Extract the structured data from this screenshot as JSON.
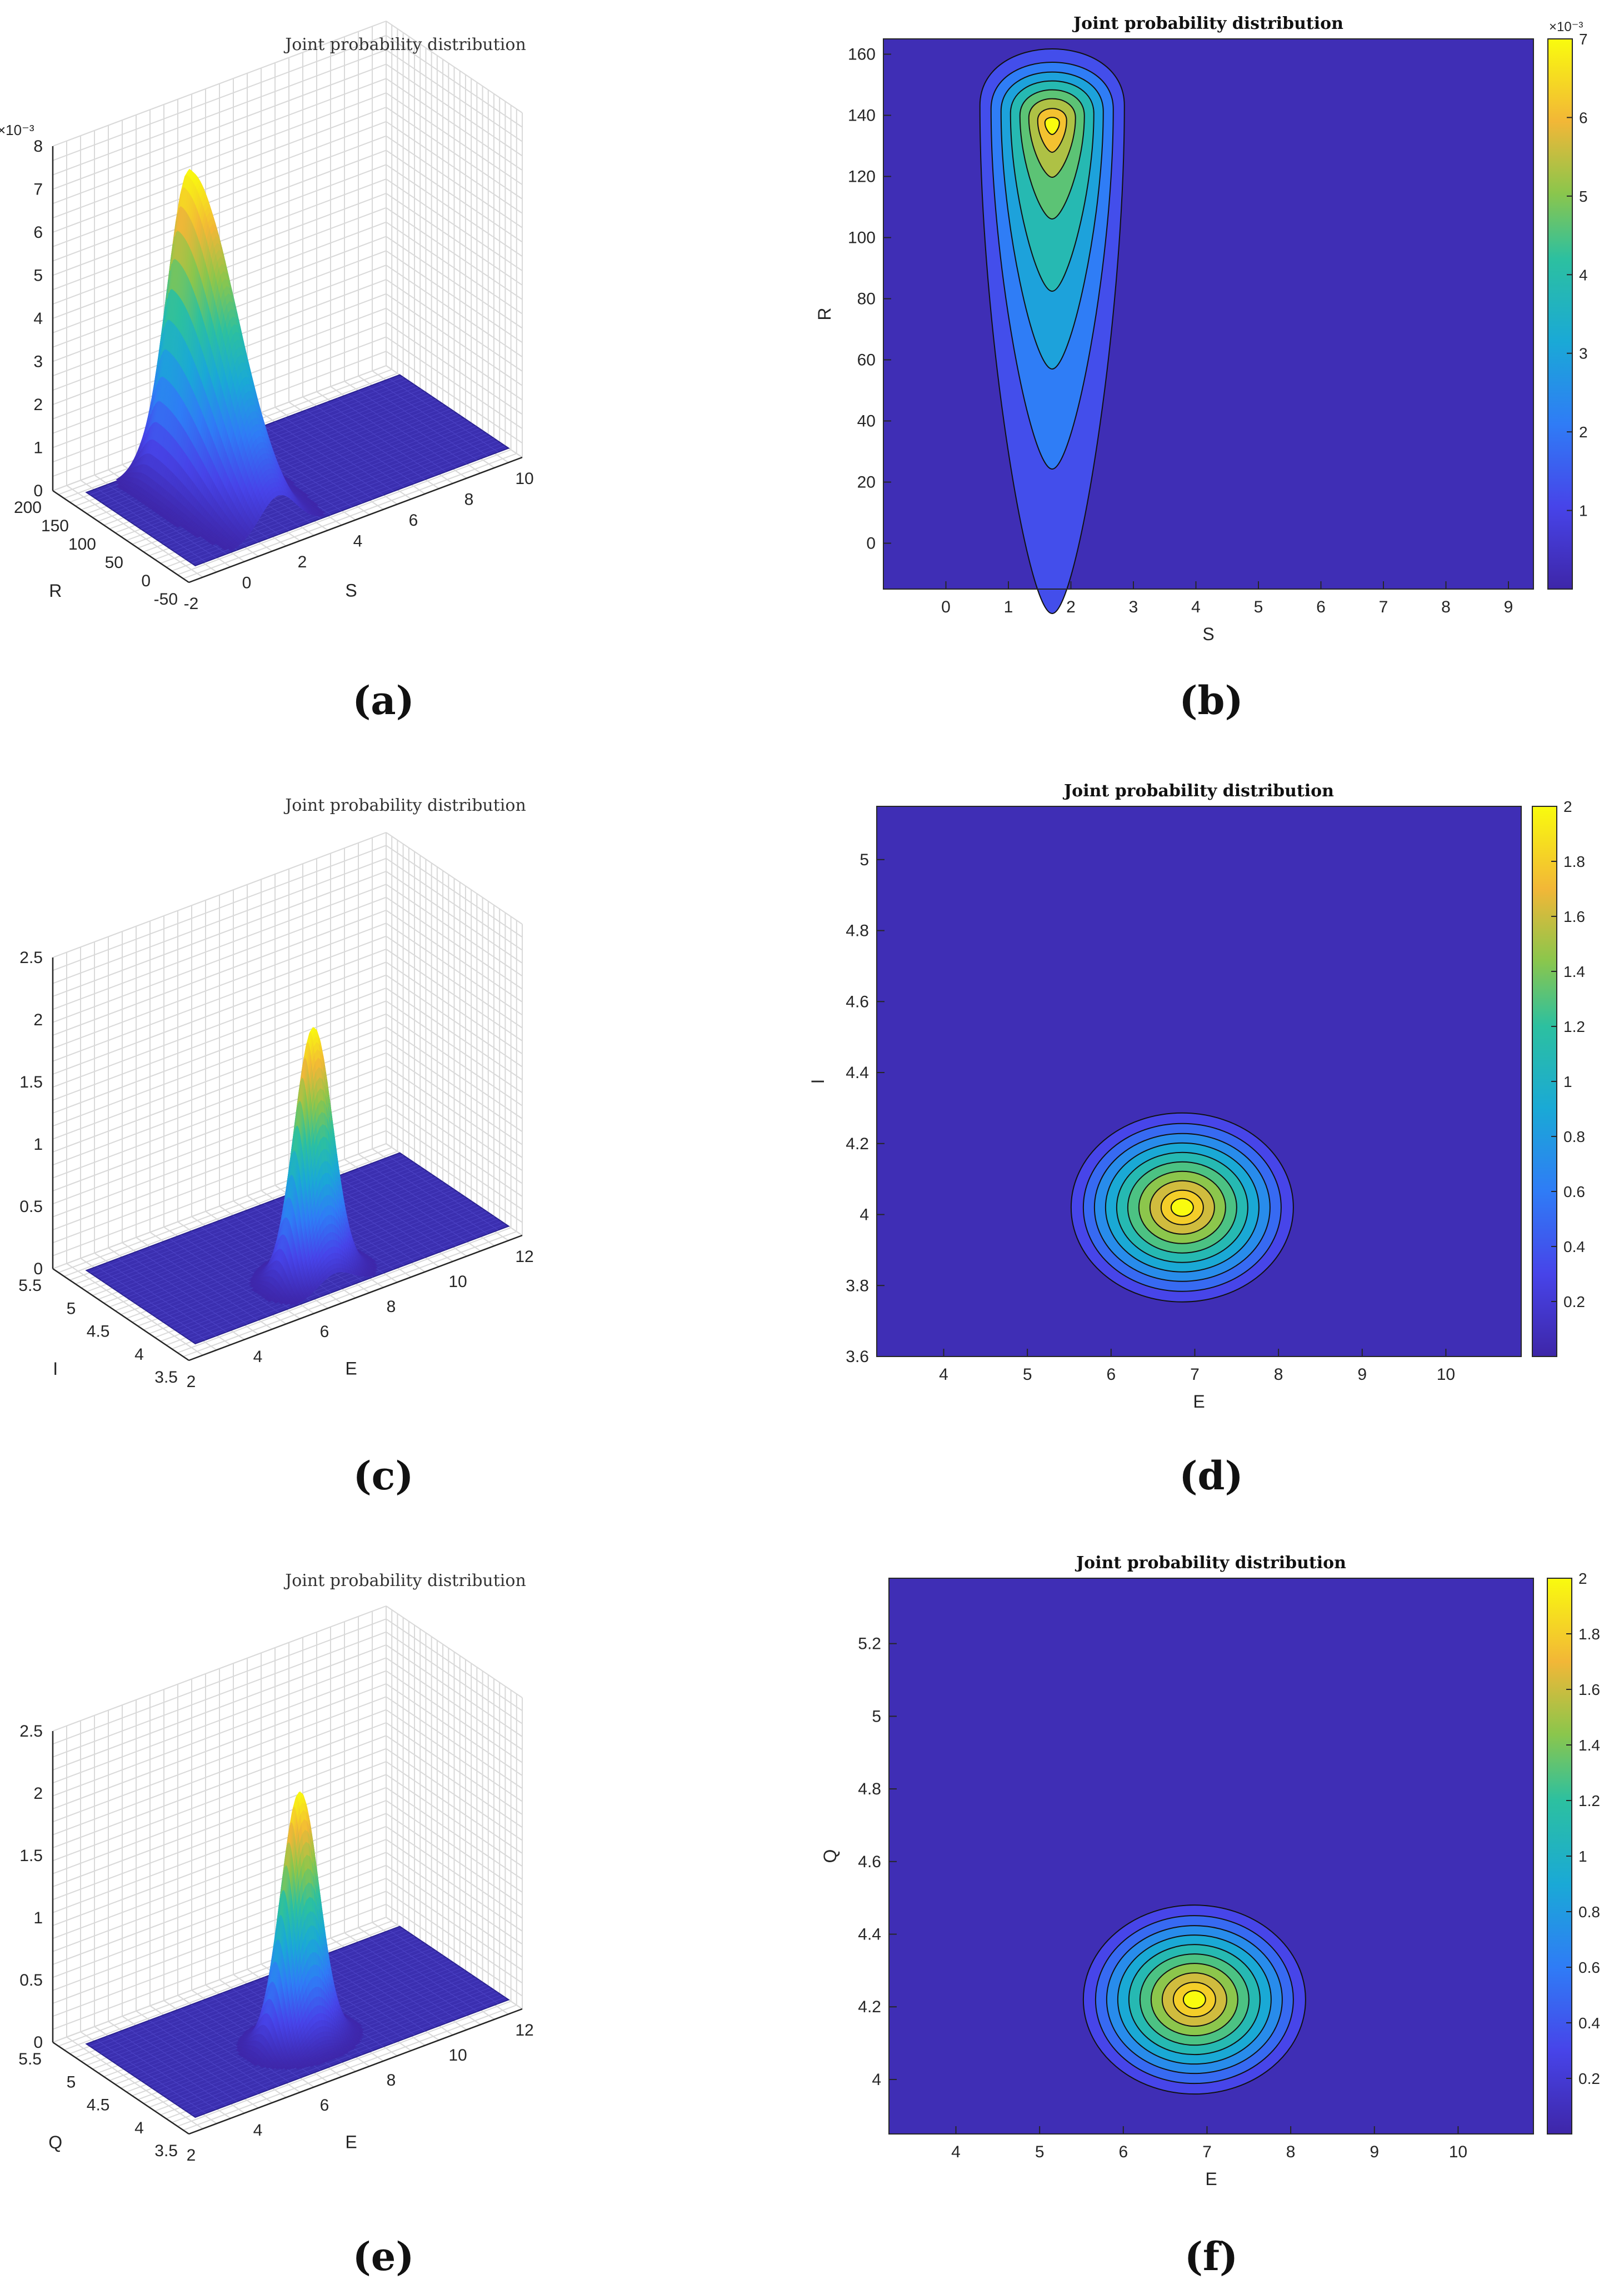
{
  "figure": {
    "captions": [
      "(a)",
      "(b)",
      "(c)",
      "(d)",
      "(e)",
      "(f)"
    ],
    "colors": {
      "surface": "#3b2fb0",
      "background_fill": "#3f2eb5",
      "grid": "#d9d9d9",
      "axis": "#262626"
    }
  },
  "chart_data": [
    {
      "id": "a",
      "type": "surface3d",
      "title": "Joint probability distribution",
      "xlabel": "S",
      "ylabel": "R",
      "zlabel": "",
      "z_exponent": "×10⁻³",
      "xlim": [
        -2,
        10
      ],
      "ylim": [
        -50,
        200
      ],
      "zlim": [
        0,
        8
      ],
      "xticks": [
        "-2",
        "0",
        "2",
        "4",
        "6",
        "8",
        "10"
      ],
      "yticks": [
        "-50",
        "0",
        "50",
        "100",
        "150",
        "200"
      ],
      "zticks": [
        "0",
        "1",
        "2",
        "3",
        "4",
        "5",
        "6",
        "7",
        "8"
      ],
      "peak": {
        "x": 1.7,
        "y": 137,
        "z": 7.1
      }
    },
    {
      "id": "b",
      "type": "contour",
      "title": "Joint probability distribution",
      "xlabel": "S",
      "ylabel": "R",
      "xlim": [
        -1,
        9.4
      ],
      "ylim": [
        -15,
        165
      ],
      "xticks": [
        "0",
        "1",
        "2",
        "3",
        "4",
        "5",
        "6",
        "7",
        "8",
        "9"
      ],
      "yticks": [
        "0",
        "20",
        "40",
        "60",
        "80",
        "100",
        "120",
        "140",
        "160"
      ],
      "colorbar": {
        "ticks": [
          "1",
          "2",
          "3",
          "4",
          "5",
          "6",
          "7"
        ],
        "exponent": "×10⁻³",
        "min": 0,
        "max": 7
      },
      "peak": {
        "x": 1.7,
        "y": 137
      }
    },
    {
      "id": "c",
      "type": "surface3d",
      "title": "Joint probability distribution",
      "xlabel": "E",
      "ylabel": "I",
      "zlabel": "",
      "xlim": [
        2,
        12
      ],
      "ylim": [
        3.5,
        5.5
      ],
      "zlim": [
        0,
        2.5
      ],
      "xticks": [
        "2",
        "4",
        "6",
        "8",
        "10",
        "12"
      ],
      "yticks": [
        "3.5",
        "4",
        "4.5",
        "5",
        "5.5"
      ],
      "zticks": [
        "0",
        "0.5",
        "1",
        "1.5",
        "2",
        "2.5"
      ],
      "peak": {
        "x": 6.8,
        "y": 4.02,
        "z": 2.0
      }
    },
    {
      "id": "d",
      "type": "contour",
      "title": "Joint probability distribution",
      "xlabel": "E",
      "ylabel": "I",
      "xlim": [
        3.2,
        10.9
      ],
      "ylim": [
        3.6,
        5.15
      ],
      "xticks": [
        "4",
        "5",
        "6",
        "7",
        "8",
        "9",
        "10"
      ],
      "yticks": [
        "3.6",
        "3.8",
        "4",
        "4.2",
        "4.4",
        "4.6",
        "4.8",
        "5"
      ],
      "colorbar": {
        "ticks": [
          "0.2",
          "0.4",
          "0.6",
          "0.8",
          "1",
          "1.2",
          "1.4",
          "1.6",
          "1.8",
          "2"
        ],
        "exponent": "",
        "min": 0,
        "max": 2
      },
      "peak": {
        "x": 6.85,
        "y": 4.02
      }
    },
    {
      "id": "e",
      "type": "surface3d",
      "title": "Joint probability distribution",
      "xlabel": "E",
      "ylabel": "Q",
      "zlabel": "",
      "xlim": [
        2,
        12
      ],
      "ylim": [
        3.5,
        5.5
      ],
      "zlim": [
        0,
        2.5
      ],
      "xticks": [
        "2",
        "4",
        "6",
        "8",
        "10",
        "12"
      ],
      "yticks": [
        "3.5",
        "4",
        "4.5",
        "5",
        "5.5"
      ],
      "zticks": [
        "0",
        "0.5",
        "1",
        "1.5",
        "2",
        "2.5"
      ],
      "peak": {
        "x": 6.8,
        "y": 4.22,
        "z": 2.0
      }
    },
    {
      "id": "f",
      "type": "contour",
      "title": "Joint probability distribution",
      "xlabel": "E",
      "ylabel": "Q",
      "xlim": [
        3.2,
        10.9
      ],
      "ylim": [
        3.85,
        5.38
      ],
      "xticks": [
        "4",
        "5",
        "6",
        "7",
        "8",
        "9",
        "10"
      ],
      "yticks": [
        "4",
        "4.2",
        "4.4",
        "4.6",
        "4.8",
        "5",
        "5.2"
      ],
      "colorbar": {
        "ticks": [
          "0.2",
          "0.4",
          "0.6",
          "0.8",
          "1",
          "1.2",
          "1.4",
          "1.6",
          "1.8",
          "2"
        ],
        "exponent": "",
        "min": 0,
        "max": 2
      },
      "peak": {
        "x": 6.85,
        "y": 4.22
      }
    }
  ]
}
